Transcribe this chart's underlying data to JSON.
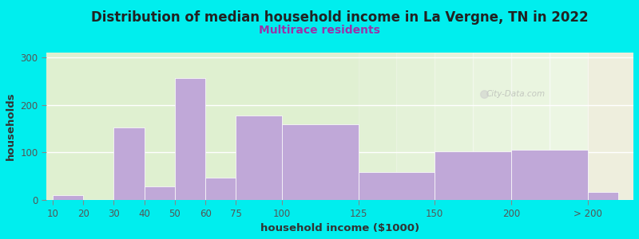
{
  "title": "Distribution of median household income in La Vergne, TN in 2022",
  "subtitle": "Multirace residents",
  "xlabel": "household income ($1000)",
  "ylabel": "households",
  "background_outer": "#00EEEE",
  "background_inner_left": "#dff0d0",
  "background_inner_right": "#f2f4ee",
  "bar_color": "#c0a8d8",
  "categories": [
    "10",
    "20",
    "30",
    "40",
    "50",
    "60",
    "75",
    "100",
    "125",
    "150",
    "200",
    "> 200"
  ],
  "values": [
    10,
    0,
    153,
    28,
    257,
    47,
    178,
    160,
    58,
    102,
    105,
    17
  ],
  "bar_lefts": [
    0,
    1,
    2,
    3,
    4,
    5,
    6,
    7.5,
    10,
    12.5,
    15,
    17.5
  ],
  "bar_widths": [
    1,
    1,
    1,
    1,
    1,
    1,
    1.5,
    2.5,
    2.5,
    2.5,
    2.5,
    1
  ],
  "xlim": [
    -0.2,
    19.0
  ],
  "ylim": [
    0,
    310
  ],
  "yticks": [
    0,
    100,
    200,
    300
  ],
  "title_fontsize": 12,
  "subtitle_fontsize": 10,
  "axis_label_fontsize": 9.5,
  "tick_fontsize": 8.5,
  "watermark": "City-Data.com"
}
